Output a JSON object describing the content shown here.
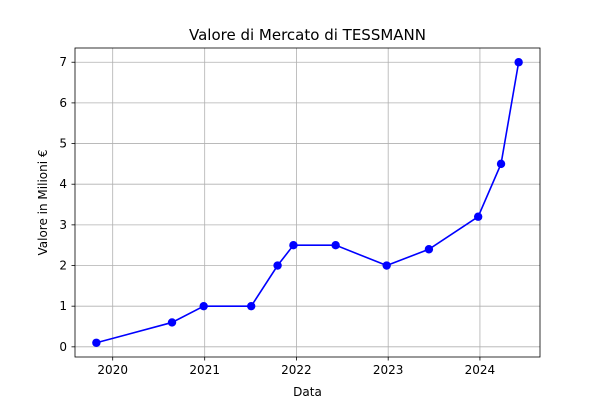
{
  "chart_data": {
    "type": "line",
    "title": "Valore di Mercato di TESSMANN",
    "xlabel": "Data",
    "ylabel": "Valore in Milioni €",
    "x_type": "date",
    "x": [
      "2019-10-28",
      "2020-08-24",
      "2020-12-28",
      "2021-07-05",
      "2021-10-18",
      "2021-12-20",
      "2022-06-06",
      "2022-12-26",
      "2023-06-12",
      "2023-12-25",
      "2024-03-25",
      "2024-06-03"
    ],
    "series": [
      {
        "values": [
          0.1,
          0.6,
          1.0,
          1.0,
          2.0,
          2.5,
          2.5,
          2.0,
          2.4,
          3.2,
          4.5,
          7.0
        ],
        "color": "#0000ff",
        "marker": "circle"
      }
    ],
    "x_ticks": [
      "2020",
      "2021",
      "2022",
      "2023",
      "2024"
    ],
    "y_ticks": [
      0,
      1,
      2,
      3,
      4,
      5,
      6,
      7
    ],
    "xlim": [
      "2019-08-04",
      "2024-08-27"
    ],
    "ylim": [
      -0.25,
      7.35
    ],
    "grid": true
  }
}
